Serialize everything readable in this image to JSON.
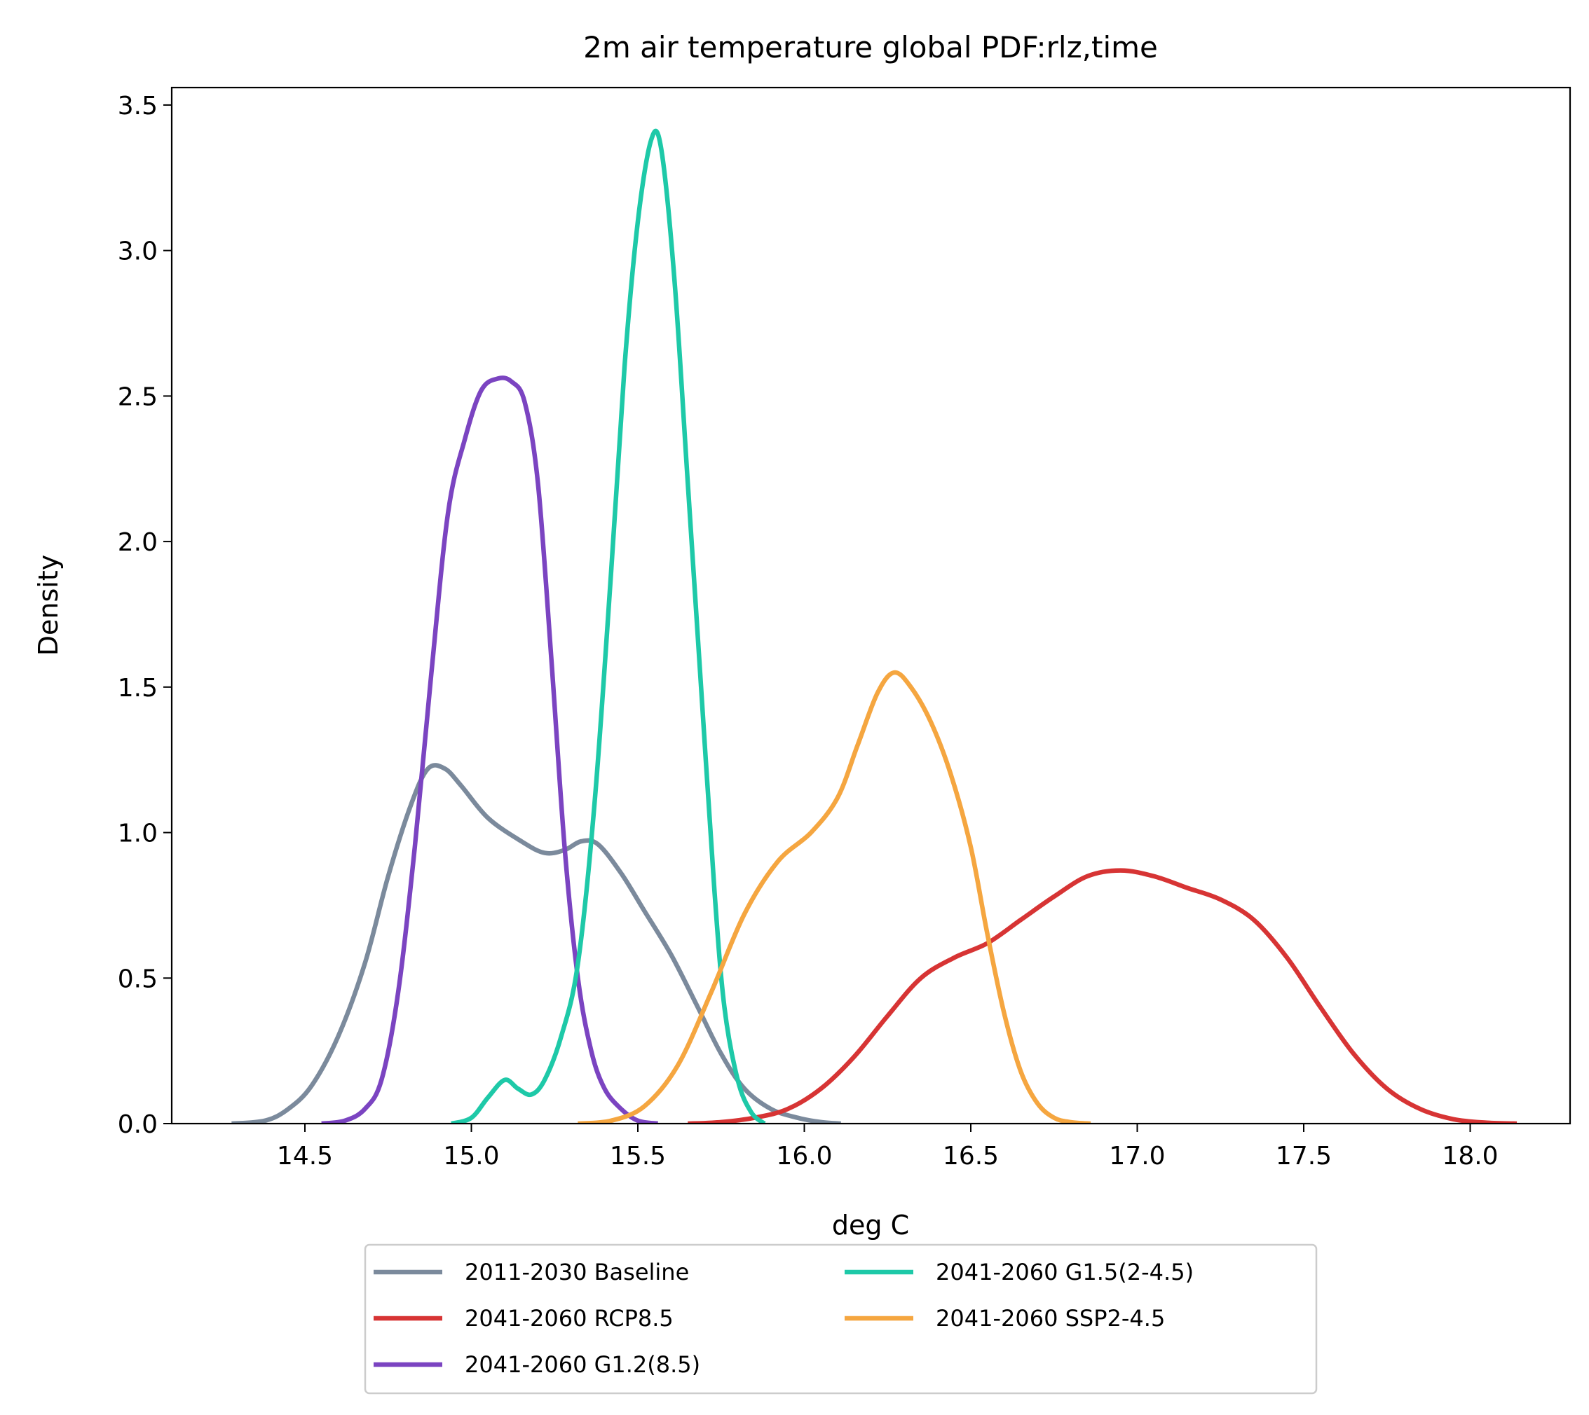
{
  "chart_data": {
    "type": "line",
    "title": "2m air temperature  global PDF:rlz,time",
    "xlabel": "deg C",
    "ylabel": "Density",
    "xlim": [
      14.1,
      18.3
    ],
    "ylim": [
      0,
      3.56
    ],
    "xticks": [
      "14.5",
      "15.0",
      "15.5",
      "16.0",
      "16.5",
      "17.0",
      "17.5",
      "18.0"
    ],
    "yticks": [
      "0.0",
      "0.5",
      "1.0",
      "1.5",
      "2.0",
      "2.5",
      "3.0",
      "3.5"
    ],
    "grid": false,
    "legend_position": "below-center",
    "series": [
      {
        "name": "2011-2030 Baseline",
        "color": "#7b8a9c",
        "points": [
          [
            14.28,
            0.0
          ],
          [
            14.38,
            0.01
          ],
          [
            14.45,
            0.05
          ],
          [
            14.52,
            0.13
          ],
          [
            14.6,
            0.3
          ],
          [
            14.68,
            0.55
          ],
          [
            14.75,
            0.85
          ],
          [
            14.82,
            1.1
          ],
          [
            14.87,
            1.22
          ],
          [
            14.92,
            1.22
          ],
          [
            14.97,
            1.16
          ],
          [
            15.05,
            1.05
          ],
          [
            15.15,
            0.97
          ],
          [
            15.22,
            0.93
          ],
          [
            15.28,
            0.94
          ],
          [
            15.33,
            0.97
          ],
          [
            15.38,
            0.96
          ],
          [
            15.45,
            0.86
          ],
          [
            15.52,
            0.73
          ],
          [
            15.6,
            0.58
          ],
          [
            15.68,
            0.4
          ],
          [
            15.75,
            0.24
          ],
          [
            15.82,
            0.12
          ],
          [
            15.9,
            0.05
          ],
          [
            15.98,
            0.02
          ],
          [
            16.05,
            0.005
          ],
          [
            16.11,
            0.0
          ]
        ]
      },
      {
        "name": "2041-2060 RCP8.5",
        "color": "#d73434",
        "points": [
          [
            15.65,
            0.0
          ],
          [
            15.75,
            0.005
          ],
          [
            15.85,
            0.02
          ],
          [
            15.95,
            0.05
          ],
          [
            16.05,
            0.12
          ],
          [
            16.15,
            0.23
          ],
          [
            16.25,
            0.37
          ],
          [
            16.35,
            0.5
          ],
          [
            16.45,
            0.57
          ],
          [
            16.55,
            0.62
          ],
          [
            16.65,
            0.7
          ],
          [
            16.75,
            0.78
          ],
          [
            16.85,
            0.85
          ],
          [
            16.95,
            0.87
          ],
          [
            17.05,
            0.85
          ],
          [
            17.15,
            0.81
          ],
          [
            17.25,
            0.77
          ],
          [
            17.35,
            0.7
          ],
          [
            17.45,
            0.57
          ],
          [
            17.55,
            0.4
          ],
          [
            17.65,
            0.24
          ],
          [
            17.75,
            0.12
          ],
          [
            17.85,
            0.05
          ],
          [
            17.95,
            0.015
          ],
          [
            18.05,
            0.003
          ],
          [
            18.14,
            0.0
          ]
        ]
      },
      {
        "name": "2041-2060 G1.2(8.5)",
        "color": "#7b44c1",
        "points": [
          [
            14.55,
            0.0
          ],
          [
            14.62,
            0.01
          ],
          [
            14.68,
            0.05
          ],
          [
            14.73,
            0.15
          ],
          [
            14.78,
            0.45
          ],
          [
            14.83,
            0.95
          ],
          [
            14.88,
            1.55
          ],
          [
            14.93,
            2.1
          ],
          [
            14.98,
            2.35
          ],
          [
            15.03,
            2.52
          ],
          [
            15.08,
            2.56
          ],
          [
            15.12,
            2.55
          ],
          [
            15.16,
            2.48
          ],
          [
            15.2,
            2.2
          ],
          [
            15.24,
            1.6
          ],
          [
            15.28,
            0.95
          ],
          [
            15.32,
            0.5
          ],
          [
            15.36,
            0.25
          ],
          [
            15.4,
            0.12
          ],
          [
            15.45,
            0.05
          ],
          [
            15.5,
            0.01
          ],
          [
            15.56,
            0.0
          ]
        ]
      },
      {
        "name": "2041-2060 G1.5(2-4.5)",
        "color": "#1ec9a8",
        "points": [
          [
            14.94,
            0.0
          ],
          [
            15.0,
            0.02
          ],
          [
            15.05,
            0.09
          ],
          [
            15.1,
            0.15
          ],
          [
            15.14,
            0.12
          ],
          [
            15.18,
            0.1
          ],
          [
            15.22,
            0.15
          ],
          [
            15.27,
            0.3
          ],
          [
            15.32,
            0.55
          ],
          [
            15.37,
            1.1
          ],
          [
            15.42,
            1.9
          ],
          [
            15.46,
            2.6
          ],
          [
            15.5,
            3.1
          ],
          [
            15.54,
            3.38
          ],
          [
            15.57,
            3.35
          ],
          [
            15.61,
            2.9
          ],
          [
            15.65,
            2.2
          ],
          [
            15.69,
            1.5
          ],
          [
            15.73,
            0.8
          ],
          [
            15.76,
            0.4
          ],
          [
            15.8,
            0.15
          ],
          [
            15.84,
            0.04
          ],
          [
            15.88,
            0.0
          ]
        ]
      },
      {
        "name": "2041-2060 SSP2-4.5",
        "color": "#f5a640",
        "points": [
          [
            15.32,
            0.0
          ],
          [
            15.42,
            0.01
          ],
          [
            15.52,
            0.06
          ],
          [
            15.62,
            0.2
          ],
          [
            15.72,
            0.45
          ],
          [
            15.82,
            0.72
          ],
          [
            15.92,
            0.9
          ],
          [
            16.02,
            1.0
          ],
          [
            16.1,
            1.12
          ],
          [
            16.16,
            1.3
          ],
          [
            16.22,
            1.48
          ],
          [
            16.27,
            1.55
          ],
          [
            16.32,
            1.5
          ],
          [
            16.38,
            1.38
          ],
          [
            16.44,
            1.2
          ],
          [
            16.5,
            0.95
          ],
          [
            16.55,
            0.65
          ],
          [
            16.6,
            0.38
          ],
          [
            16.65,
            0.18
          ],
          [
            16.7,
            0.07
          ],
          [
            16.75,
            0.02
          ],
          [
            16.8,
            0.005
          ],
          [
            16.86,
            0.0
          ]
        ]
      }
    ]
  }
}
